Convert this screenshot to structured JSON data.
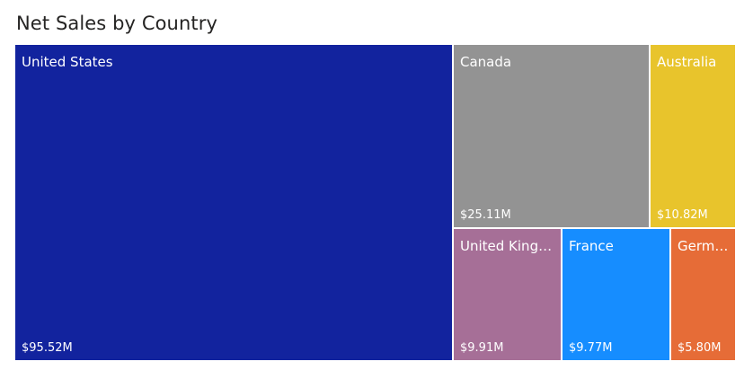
{
  "chart_data": {
    "type": "treemap",
    "title": "Net Sales by Country",
    "value_unit": "$M",
    "items": [
      {
        "name": "United States",
        "value": 95.52,
        "label": "$95.52M",
        "color": "#12239E"
      },
      {
        "name": "Canada",
        "value": 25.11,
        "label": "$25.11M",
        "color": "#939393"
      },
      {
        "name": "Australia",
        "value": 10.82,
        "label": "$10.82M",
        "color": "#E8C42C"
      },
      {
        "name": "United Kingdom",
        "value": 9.91,
        "label": "$9.91M",
        "color": "#A66F97"
      },
      {
        "name": "France",
        "value": 9.77,
        "label": "$9.77M",
        "color": "#168DFF"
      },
      {
        "name": "Germany",
        "value": 5.8,
        "label": "$5.80M",
        "color": "#E66C37"
      }
    ]
  }
}
